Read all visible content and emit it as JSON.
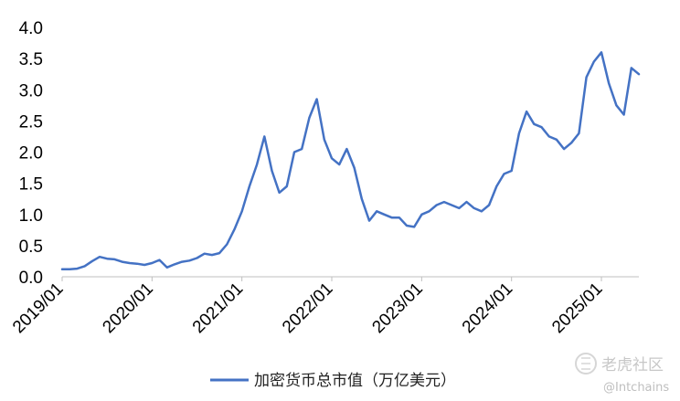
{
  "chart_data": {
    "type": "line",
    "title": "",
    "xlabel": "",
    "ylabel": "",
    "ylim": [
      0,
      4.0
    ],
    "y_ticks": [
      "0.0",
      "0.5",
      "1.0",
      "1.5",
      "2.0",
      "2.5",
      "3.0",
      "3.5",
      "4.0"
    ],
    "x_tick_labels": [
      "2019/01",
      "2020/01",
      "2021/01",
      "2022/01",
      "2023/01",
      "2024/01",
      "2025/01"
    ],
    "x_range": [
      "2019-01",
      "2025-06"
    ],
    "grid": false,
    "legend_position": "bottom",
    "series": [
      {
        "name": "加密货币总市值（万亿美元）",
        "color": "#4472C4",
        "x": [
          "2019-01",
          "2019-02",
          "2019-03",
          "2019-04",
          "2019-05",
          "2019-06",
          "2019-07",
          "2019-08",
          "2019-09",
          "2019-10",
          "2019-11",
          "2019-12",
          "2020-01",
          "2020-02",
          "2020-03",
          "2020-04",
          "2020-05",
          "2020-06",
          "2020-07",
          "2020-08",
          "2020-09",
          "2020-10",
          "2020-11",
          "2020-12",
          "2021-01",
          "2021-02",
          "2021-03",
          "2021-04",
          "2021-05",
          "2021-06",
          "2021-07",
          "2021-08",
          "2021-09",
          "2021-10",
          "2021-11",
          "2021-12",
          "2022-01",
          "2022-02",
          "2022-03",
          "2022-04",
          "2022-05",
          "2022-06",
          "2022-07",
          "2022-08",
          "2022-09",
          "2022-10",
          "2022-11",
          "2022-12",
          "2023-01",
          "2023-02",
          "2023-03",
          "2023-04",
          "2023-05",
          "2023-06",
          "2023-07",
          "2023-08",
          "2023-09",
          "2023-10",
          "2023-11",
          "2023-12",
          "2024-01",
          "2024-02",
          "2024-03",
          "2024-04",
          "2024-05",
          "2024-06",
          "2024-07",
          "2024-08",
          "2024-09",
          "2024-10",
          "2024-11",
          "2024-12",
          "2025-01",
          "2025-02",
          "2025-03",
          "2025-04",
          "2025-05",
          "2025-06"
        ],
        "y": [
          0.12,
          0.12,
          0.13,
          0.17,
          0.25,
          0.32,
          0.29,
          0.28,
          0.24,
          0.22,
          0.21,
          0.19,
          0.22,
          0.27,
          0.15,
          0.2,
          0.24,
          0.26,
          0.3,
          0.37,
          0.35,
          0.38,
          0.52,
          0.76,
          1.05,
          1.45,
          1.8,
          2.25,
          1.7,
          1.35,
          1.45,
          2.0,
          2.05,
          2.55,
          2.85,
          2.2,
          1.9,
          1.8,
          2.05,
          1.75,
          1.25,
          0.9,
          1.05,
          1.0,
          0.95,
          0.95,
          0.82,
          0.8,
          1.0,
          1.05,
          1.15,
          1.2,
          1.15,
          1.1,
          1.2,
          1.1,
          1.05,
          1.15,
          1.45,
          1.65,
          1.7,
          2.3,
          2.65,
          2.45,
          2.4,
          2.25,
          2.2,
          2.05,
          2.15,
          2.3,
          3.2,
          3.45,
          3.6,
          3.1,
          2.75,
          2.6,
          3.35,
          3.25
        ]
      }
    ]
  },
  "watermark": {
    "brand": "老虎社区",
    "handle": "@Intchains"
  }
}
